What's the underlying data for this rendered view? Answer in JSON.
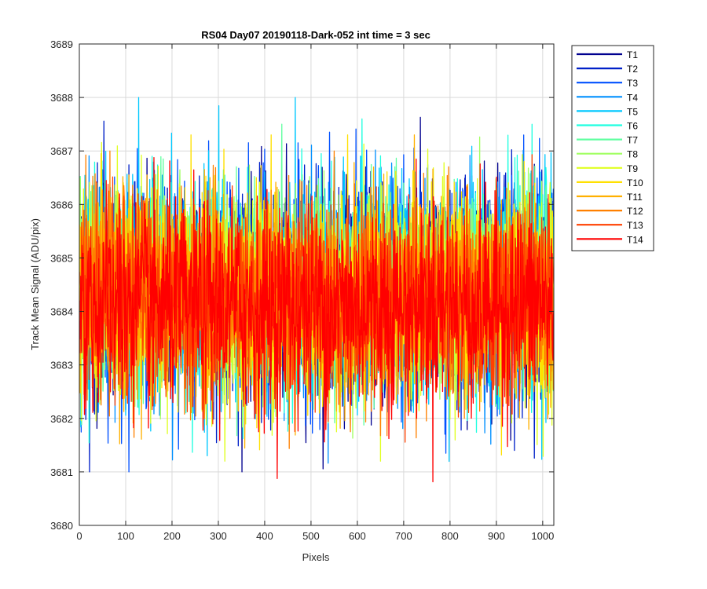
{
  "chart_data": {
    "type": "line",
    "title": "RS04 Day07 20190118-Dark-052 int time = 3 sec",
    "xlabel": "Pixels",
    "ylabel": "Track Mean Signal (ADU/pix)",
    "xlim": [
      0,
      1024
    ],
    "ylim": [
      3680,
      3689
    ],
    "xticks": [
      0,
      100,
      200,
      300,
      400,
      500,
      600,
      700,
      800,
      900,
      1000
    ],
    "yticks": [
      3680,
      3681,
      3682,
      3683,
      3684,
      3685,
      3686,
      3687,
      3688,
      3689
    ],
    "grid": true,
    "legend_position": "outside-top-right",
    "x_range": [
      1,
      1024
    ],
    "series": [
      {
        "name": "T1",
        "color": "#00008f",
        "mean": 3684.4,
        "min": 3681.0,
        "max": 3687.9
      },
      {
        "name": "T2",
        "color": "#0020c8",
        "mean": 3684.4,
        "min": 3681.0,
        "max": 3688.0
      },
      {
        "name": "T3",
        "color": "#0050ff",
        "mean": 3684.4,
        "min": 3681.0,
        "max": 3688.1
      },
      {
        "name": "T4",
        "color": "#0090ff",
        "mean": 3684.4,
        "min": 3680.8,
        "max": 3687.5
      },
      {
        "name": "T5",
        "color": "#00c8ff",
        "mean": 3684.4,
        "min": 3680.7,
        "max": 3688.0
      },
      {
        "name": "T6",
        "color": "#20ffe0",
        "mean": 3684.4,
        "min": 3680.8,
        "max": 3687.6
      },
      {
        "name": "T7",
        "color": "#60ffa0",
        "mean": 3684.4,
        "min": 3681.2,
        "max": 3687.5
      },
      {
        "name": "T8",
        "color": "#a0ff60",
        "mean": 3684.4,
        "min": 3681.2,
        "max": 3687.8
      },
      {
        "name": "T9",
        "color": "#e0ff20",
        "mean": 3684.3,
        "min": 3681.2,
        "max": 3688.2
      },
      {
        "name": "T10",
        "color": "#ffe000",
        "mean": 3684.3,
        "min": 3680.5,
        "max": 3687.3
      },
      {
        "name": "T11",
        "color": "#ffb000",
        "mean": 3684.3,
        "min": 3680.9,
        "max": 3687.3
      },
      {
        "name": "T12",
        "color": "#ff8000",
        "mean": 3684.2,
        "min": 3680.6,
        "max": 3687.0
      },
      {
        "name": "T13",
        "color": "#ff4000",
        "mean": 3684.2,
        "min": 3680.8,
        "max": 3687.1
      },
      {
        "name": "T14",
        "color": "#ff0000",
        "mean": 3684.1,
        "min": 3680.1,
        "max": 3686.9
      }
    ]
  }
}
